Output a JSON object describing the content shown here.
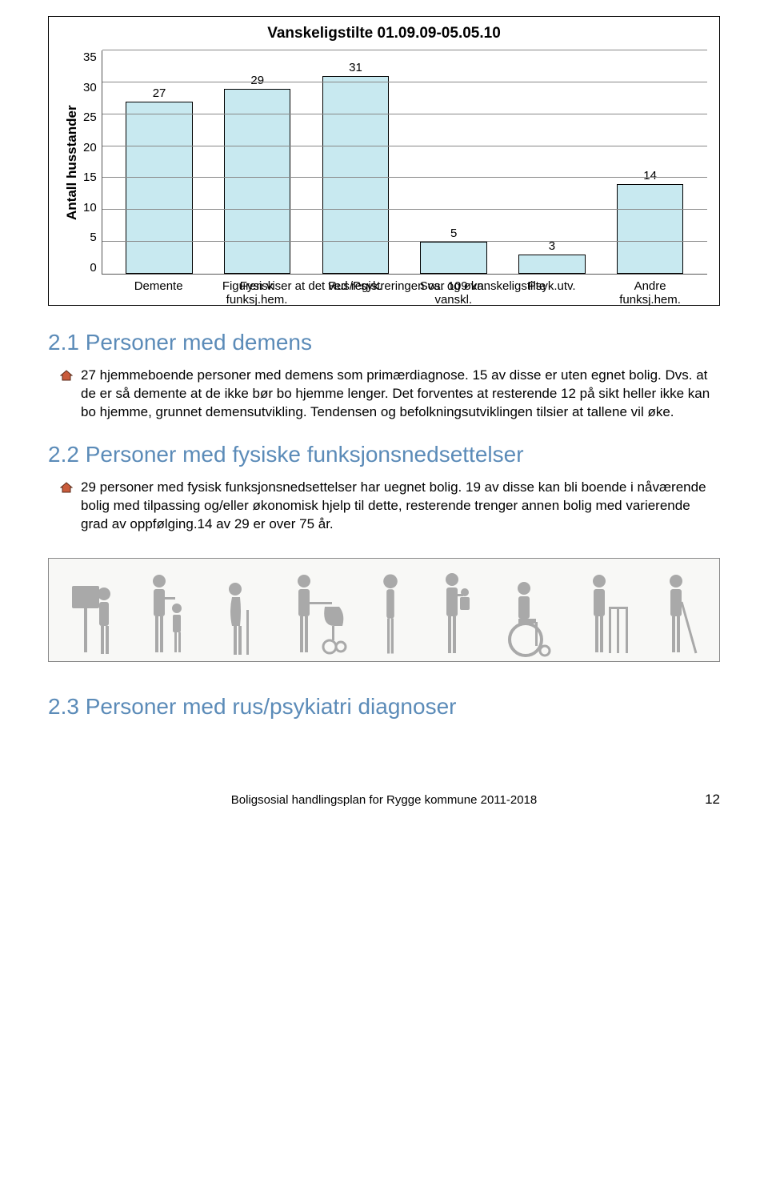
{
  "chart": {
    "type": "bar",
    "title": "Vanskeligstilte 01.09.09-05.05.10",
    "y_label": "Antall husstander",
    "ylim": [
      0,
      35
    ],
    "ytick_step": 5,
    "yticks": [
      "35",
      "30",
      "25",
      "20",
      "15",
      "10",
      "5",
      "0"
    ],
    "categories": [
      "Demente",
      "Fysisk\nfunksj.hem.",
      "Rus/Psyk.",
      "Sos. og økn.\nvanskl.",
      "Psyk.utv.",
      "Andre\nfunksj.hem."
    ],
    "values": [
      27,
      29,
      31,
      5,
      3,
      14
    ],
    "bar_color": "#c8e9f0",
    "bar_border": "#000000",
    "grid_color": "#888888",
    "background": "#ffffff",
    "caption": "Figuren viser at det ved registreringen var 109 vanskeligstilte",
    "title_fontsize": 19,
    "label_fontsize": 15,
    "bar_width": 0.68
  },
  "sections": {
    "s1": {
      "heading": "2.1 Personer med demens",
      "heading_color": "#5b8bb8",
      "body": "27 hjemmeboende personer med demens som primærdiagnose. 15 av disse er uten egnet bolig. Dvs. at de er så demente at de ikke bør bo hjemme lenger. Det forventes at resterende 12 på sikt heller ikke kan bo hjemme, grunnet demensutvikling. Tendensen og befolkningsutviklingen tilsier at tallene vil øke."
    },
    "s2": {
      "heading": "2.2 Personer med fysiske funksjonsnedsettelser",
      "heading_color": "#5b8bb8",
      "body": "29 personer med fysisk funksjonsnedsettelser har uegnet bolig. 19 av disse kan bli boende i nåværende bolig med tilpassing og/eller økonomisk  hjelp til dette, resterende trenger annen bolig med varierende grad av oppfølging.14 av 29 er over 75 år."
    },
    "s3": {
      "heading": "2.3 Personer med rus/psykiatri diagnoser",
      "heading_color": "#5b8bb8"
    }
  },
  "bullet_icon": {
    "fill": "#c95b3b",
    "stroke": "#5a2a18"
  },
  "people_strip": {
    "fill": "#a9a9a9",
    "bg": "#f8f8f6"
  },
  "footer": {
    "title": "Boligsosial handlingsplan for Rygge kommune 2011-2018",
    "page": "12"
  }
}
